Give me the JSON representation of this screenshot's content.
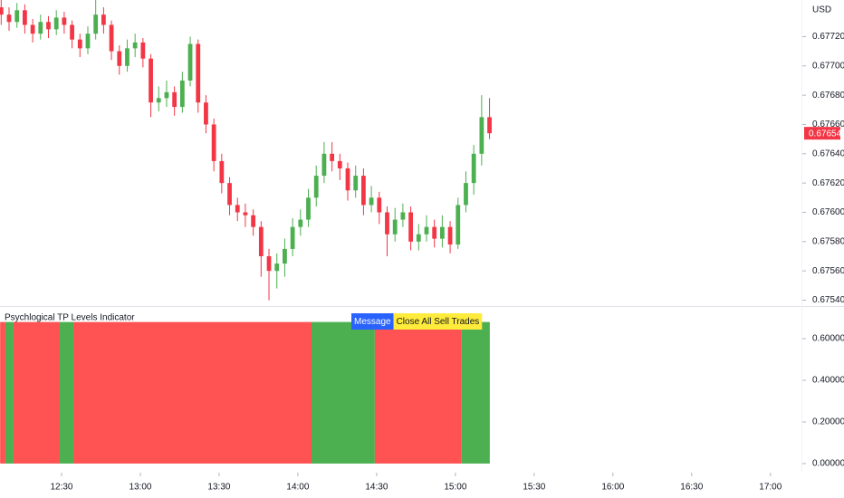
{
  "chart_data": [
    {
      "type": "candlestick",
      "currency": "USD",
      "up_color": "#4caf50",
      "down_color": "#f23645",
      "xlim": [
        6.55,
        311.8
      ],
      "ylim": [
        0.67536,
        0.67745
      ],
      "yticks": [
        {
          "value": 0.6754,
          "label": "0.67540"
        },
        {
          "value": 0.6756,
          "label": "0.67560"
        },
        {
          "value": 0.6758,
          "label": "0.67580"
        },
        {
          "value": 0.676,
          "label": "0.67600"
        },
        {
          "value": 0.6762,
          "label": "0.67620"
        },
        {
          "value": 0.6764,
          "label": "0.67640"
        },
        {
          "value": 0.6766,
          "label": "0.67660"
        },
        {
          "value": 0.6768,
          "label": "0.67680"
        },
        {
          "value": 0.677,
          "label": "0.67700"
        },
        {
          "value": 0.6772,
          "label": "0.67720"
        }
      ],
      "x": [
        7,
        10,
        13,
        16,
        19,
        22,
        25,
        28,
        31,
        34,
        37,
        40,
        43,
        46,
        49,
        52,
        55,
        58,
        61,
        64,
        67,
        70,
        73,
        76,
        79,
        82,
        85,
        88,
        91,
        94,
        97,
        100,
        103,
        106,
        109,
        112,
        115,
        118,
        121,
        124,
        127,
        130,
        133,
        136,
        139,
        142,
        145,
        148,
        151,
        154,
        157,
        160,
        163,
        166,
        169,
        172,
        175,
        178,
        181,
        184,
        187,
        190,
        193
      ],
      "open": [
        0.6774,
        0.67735,
        0.6773,
        0.67738,
        0.67728,
        0.67722,
        0.6773,
        0.67725,
        0.67733,
        0.67728,
        0.67718,
        0.67712,
        0.67722,
        0.67735,
        0.67728,
        0.6771,
        0.677,
        0.67712,
        0.67716,
        0.67705,
        0.67675,
        0.67678,
        0.67682,
        0.67672,
        0.6769,
        0.67715,
        0.67675,
        0.6766,
        0.67635,
        0.6762,
        0.67605,
        0.676,
        0.67598,
        0.6759,
        0.6757,
        0.6756,
        0.67565,
        0.67575,
        0.6759,
        0.67595,
        0.6761,
        0.67625,
        0.6764,
        0.67635,
        0.6763,
        0.67615,
        0.67625,
        0.67605,
        0.6761,
        0.676,
        0.67585,
        0.67595,
        0.676,
        0.6758,
        0.67585,
        0.6759,
        0.67582,
        0.6759,
        0.67578,
        0.67605,
        0.6762,
        0.6764,
        0.67665
      ],
      "high": [
        0.67745,
        0.6774,
        0.67743,
        0.67742,
        0.67732,
        0.67735,
        0.67734,
        0.67738,
        0.67737,
        0.67731,
        0.67722,
        0.67727,
        0.67745,
        0.6774,
        0.67731,
        0.67714,
        0.67718,
        0.67722,
        0.67719,
        0.67708,
        0.67686,
        0.6769,
        0.67686,
        0.67696,
        0.6772,
        0.67718,
        0.6768,
        0.67664,
        0.6764,
        0.67624,
        0.6761,
        0.67606,
        0.67602,
        0.67594,
        0.67575,
        0.67572,
        0.67582,
        0.67596,
        0.67602,
        0.67616,
        0.67632,
        0.67648,
        0.67648,
        0.6764,
        0.67634,
        0.67632,
        0.6763,
        0.67618,
        0.67614,
        0.67604,
        0.67603,
        0.67606,
        0.67604,
        0.67592,
        0.67598,
        0.67595,
        0.67598,
        0.67594,
        0.6761,
        0.67628,
        0.67646,
        0.6768,
        0.67678
      ],
      "low": [
        0.67728,
        0.67724,
        0.67726,
        0.67722,
        0.67716,
        0.67718,
        0.67719,
        0.67721,
        0.67722,
        0.67712,
        0.67706,
        0.67708,
        0.67718,
        0.67722,
        0.67704,
        0.67694,
        0.67696,
        0.67706,
        0.67699,
        0.67665,
        0.67669,
        0.67672,
        0.67666,
        0.67668,
        0.67686,
        0.67668,
        0.67654,
        0.67628,
        0.67613,
        0.67598,
        0.67594,
        0.6759,
        0.67584,
        0.67556,
        0.6754,
        0.67548,
        0.67556,
        0.6757,
        0.67584,
        0.6759,
        0.67604,
        0.6762,
        0.67628,
        0.67622,
        0.67608,
        0.6761,
        0.67598,
        0.676,
        0.67592,
        0.6757,
        0.6758,
        0.6759,
        0.67574,
        0.67574,
        0.6758,
        0.67576,
        0.67576,
        0.67572,
        0.67575,
        0.676,
        0.67612,
        0.67632,
        0.6765
      ],
      "close": [
        0.67735,
        0.6773,
        0.67738,
        0.67728,
        0.67722,
        0.6773,
        0.67725,
        0.67733,
        0.67728,
        0.67718,
        0.67712,
        0.67722,
        0.67735,
        0.67728,
        0.6771,
        0.677,
        0.67712,
        0.67716,
        0.67705,
        0.67675,
        0.67678,
        0.67682,
        0.67672,
        0.6769,
        0.67715,
        0.67675,
        0.6766,
        0.67635,
        0.6762,
        0.67605,
        0.676,
        0.67598,
        0.6759,
        0.6757,
        0.6756,
        0.67565,
        0.67575,
        0.6759,
        0.67595,
        0.6761,
        0.67625,
        0.6764,
        0.67635,
        0.6763,
        0.67615,
        0.67625,
        0.67605,
        0.6761,
        0.676,
        0.67585,
        0.67595,
        0.676,
        0.6758,
        0.67585,
        0.6759,
        0.67582,
        0.6759,
        0.67578,
        0.67605,
        0.6762,
        0.6764,
        0.67665,
        0.67654
      ]
    },
    {
      "type": "bar",
      "title": "Psychlogical TP Levels Indicator",
      "xlim": [
        6.55,
        311.8
      ],
      "xticks": [
        {
          "value": 30,
          "label": "12:30"
        },
        {
          "value": 60,
          "label": "13:00"
        },
        {
          "value": 90,
          "label": "13:30"
        },
        {
          "value": 120,
          "label": "14:00"
        },
        {
          "value": 150,
          "label": "14:30"
        },
        {
          "value": 180,
          "label": "15:00"
        },
        {
          "value": 210,
          "label": "15:30"
        },
        {
          "value": 240,
          "label": "16:00"
        },
        {
          "value": 270,
          "label": "16:30"
        },
        {
          "value": 300,
          "label": "17:00"
        }
      ],
      "ylim": [
        -0.035,
        0.748
      ],
      "yticks": [
        {
          "value": 0,
          "label": "0.00000"
        },
        {
          "value": 0.2,
          "label": "0.20000"
        },
        {
          "value": 0.4,
          "label": "0.40000"
        },
        {
          "value": 0.6,
          "label": "0.60000"
        }
      ],
      "x_start": [
        6.6,
        8.6,
        11.7,
        29.3,
        34.5,
        125.2,
        149.3,
        182.4
      ],
      "x_end": [
        8.6,
        11.7,
        29.3,
        34.5,
        125.2,
        149.3,
        182.4,
        193.1
      ],
      "values": [
        0.68,
        0.68,
        0.68,
        0.68,
        0.68,
        0.68,
        0.68,
        0.68
      ],
      "colors": [
        "#ff5252",
        "#4caf50",
        "#ff5252",
        "#4caf50",
        "#ff5252",
        "#4caf50",
        "#ff5252",
        "#4caf50"
      ],
      "annotations": [
        {
          "label": "Message",
          "color": "#2962ff",
          "text_color": "#ffffff"
        },
        {
          "label": "Close All Sell Trades",
          "color": "#ffeb3b",
          "text_color": "#131722"
        }
      ]
    }
  ]
}
